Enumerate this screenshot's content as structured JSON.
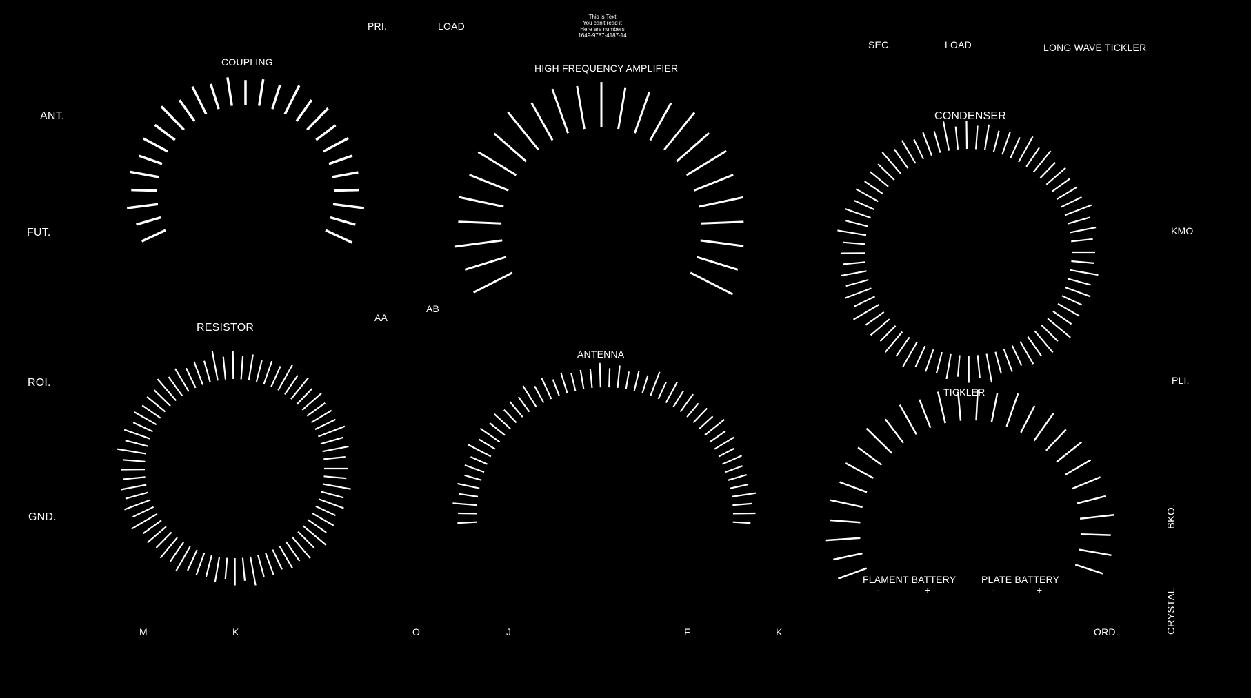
{
  "labels": {
    "pri": "PRI.",
    "load_top": "LOAD",
    "sec": "SEC.",
    "load_right": "LOAD",
    "long_wave_tickler": "LONG WAVE TICKLER",
    "coupling": "COUPLING",
    "hf_amplifier": "HIGH FREQUENCY AMPLIFIER",
    "condenser": "CONDENSER",
    "resistor": "RESISTOR",
    "antenna": "ANTENNA",
    "tickler": "TICKLER",
    "ant": "ANT.",
    "fut": "FUT.",
    "roi": "ROI.",
    "gnd": "GND.",
    "kmo": "KMO",
    "pli": "PLI.",
    "bko": "BKO.",
    "crystal": "CRYSTAL",
    "aa": "AA",
    "ab": "AB",
    "filament_battery": "FLAMENT BATTERY",
    "plate_battery": "PLATE BATTERY",
    "fil_minus": "-",
    "fil_plus": "+",
    "plate_minus": "-",
    "plate_plus": "+",
    "m": "M",
    "k1": "K",
    "o": "O",
    "j": "J",
    "f": "F",
    "k2": "K",
    "ord": "ORD."
  },
  "note": {
    "line1": "This is Text",
    "line2": "You can't read it",
    "line3": "Here are numbers",
    "line4": "1649-9787-4187-14"
  }
}
